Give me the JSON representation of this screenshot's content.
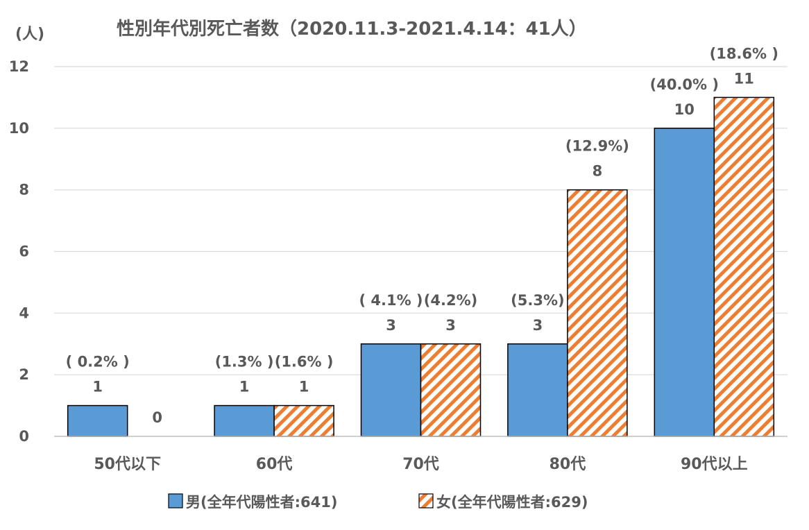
{
  "chart_data": {
    "type": "bar",
    "title": "性別年代別死亡者数（2020.11.3-2021.4.14：41人）",
    "ylabel": "(人)",
    "xlabel": "",
    "ylim": [
      0,
      12
    ],
    "yticks": [
      0,
      2,
      4,
      6,
      8,
      10,
      12
    ],
    "grid": true,
    "legend_position": "bottom",
    "categories": [
      "50代以下",
      "60代",
      "70代",
      "80代",
      "90代以上"
    ],
    "series": [
      {
        "name": "男(全年代陽性者:641)",
        "values": [
          1,
          1,
          3,
          3,
          10
        ],
        "value_labels": [
          "1",
          "1",
          "3",
          "3",
          "10"
        ],
        "percent_labels": [
          "( 0.2% )",
          "(1.3% )",
          "( 4.1% )",
          "(5.3%)",
          "(40.0% )"
        ],
        "color": "#5B9BD5",
        "pattern": "solid"
      },
      {
        "name": "女(全年代陽性者:629)",
        "values": [
          0,
          1,
          3,
          8,
          11
        ],
        "value_labels": [
          "0",
          "1",
          "3",
          "8",
          "11"
        ],
        "percent_labels": [
          "",
          "(1.6% )",
          "(4.2%)",
          "(12.9%)",
          "(18.6% )"
        ],
        "color": "#ED7D31",
        "pattern": "diagonal-stripes"
      }
    ]
  }
}
